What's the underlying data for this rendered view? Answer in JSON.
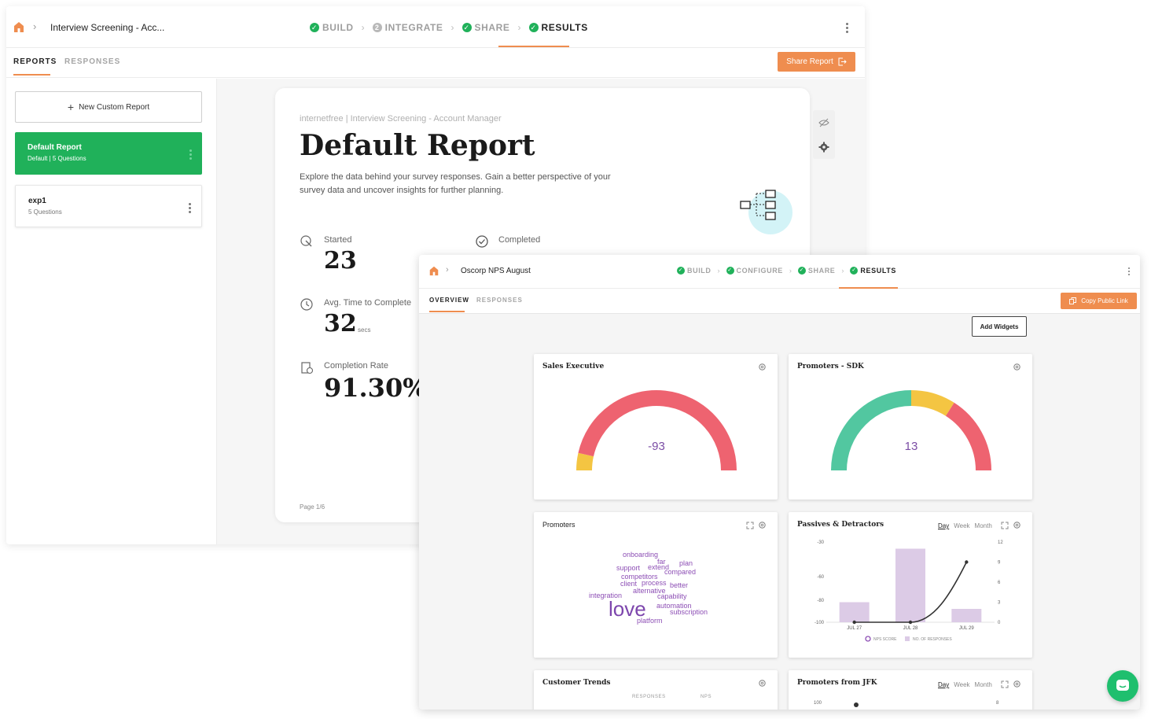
{
  "back_window": {
    "breadcrumb": {
      "title": "Interview Screening - Acc..."
    },
    "steps": [
      {
        "label": "BUILD",
        "done": true
      },
      {
        "label": "INTEGRATE",
        "done": false
      },
      {
        "label": "SHARE",
        "done": true
      },
      {
        "label": "RESULTS",
        "done": true,
        "active": true
      }
    ],
    "tabs": {
      "reports": "REPORTS",
      "responses": "RESPONSES"
    },
    "share_button": "Share Report",
    "sidebar": {
      "new_report": "New Custom Report",
      "reports": [
        {
          "title": "Default Report",
          "subtitle": "Default  |  5 Questions",
          "selected": true
        },
        {
          "title": "exp1",
          "subtitle": "5 Questions",
          "selected": false
        }
      ]
    },
    "report": {
      "crumb": "internetfree  |  Interview Screening - Account Manager",
      "title": "Default Report",
      "description": "Explore the data behind your survey responses. Gain a better perspective of your survey data and uncover insights for further planning.",
      "stats": {
        "started_label": "Started",
        "started_value": "23",
        "completed_label": "Completed",
        "avg_label": "Avg. Time to Complete",
        "avg_value": "32",
        "avg_unit": "secs",
        "rate_label": "Completion Rate",
        "rate_value": "91.30%"
      },
      "page": "Page 1/6"
    }
  },
  "front_window": {
    "breadcrumb": {
      "title": "Oscorp NPS August"
    },
    "steps": [
      {
        "label": "BUILD",
        "done": true
      },
      {
        "label": "CONFIGURE",
        "done": true
      },
      {
        "label": "SHARE",
        "done": true
      },
      {
        "label": "RESULTS",
        "done": true,
        "active": true
      }
    ],
    "tabs": {
      "overview": "OVERVIEW",
      "responses": "RESPONSES"
    },
    "copy_button": "Copy Public Link",
    "add_widgets": "Add Widgets",
    "widgets": {
      "sales_exec": {
        "title": "Sales Executive",
        "value": "-93"
      },
      "promoters_sdk": {
        "title": "Promoters - SDK",
        "value": "13"
      },
      "promoters": {
        "title": "Promoters"
      },
      "passives": {
        "title": "Passives & Detractors",
        "period": [
          "Day",
          "Week",
          "Month"
        ],
        "legend": [
          "NPS SCORE",
          "NO. OF RESPONSES"
        ]
      },
      "customer_trends": {
        "title": "Customer Trends",
        "cols": [
          "RESPONSES",
          "NPS"
        ]
      },
      "promoters_jfk": {
        "title": "Promoters from JFK",
        "period": [
          "Day",
          "Week",
          "Month"
        ],
        "left_tick": "100",
        "right_tick": "8"
      }
    },
    "word_cloud": [
      "onboarding",
      "far",
      "plan",
      "support",
      "extend",
      "compared",
      "competitors",
      "client",
      "process",
      "better",
      "alternative",
      "integration",
      "capability",
      "love",
      "automation",
      "subscription",
      "platform"
    ]
  },
  "chart_data": [
    {
      "type": "gauge",
      "title": "Sales Executive",
      "value": -93,
      "range": [
        -100,
        100
      ],
      "segments": [
        {
          "name": "yellow",
          "share": 0.07,
          "color": "#f4c542"
        },
        {
          "name": "red",
          "share": 0.93,
          "color": "#ee6370"
        }
      ]
    },
    {
      "type": "gauge",
      "title": "Promoters - SDK",
      "value": 13,
      "range": [
        -100,
        100
      ],
      "segments": [
        {
          "name": "green",
          "share": 0.5,
          "color": "#52c7a0"
        },
        {
          "name": "yellow",
          "share": 0.18,
          "color": "#f4c542"
        },
        {
          "name": "red",
          "share": 0.32,
          "color": "#ee6370"
        }
      ]
    },
    {
      "type": "bar+line",
      "title": "Passives & Detractors",
      "categories": [
        "JUL 27",
        "JUL 28",
        "JUL 29"
      ],
      "y_left_ticks": [
        "-30",
        "-60",
        "-80",
        "-100"
      ],
      "y_right_ticks": [
        "12",
        "9",
        "6",
        "3",
        "0"
      ],
      "y_right_range": [
        0,
        12
      ],
      "series": [
        {
          "name": "NO. OF RESPONSES",
          "type": "bar",
          "axis": "right",
          "values": [
            3,
            11,
            2
          ],
          "color": "#dccbe6"
        },
        {
          "name": "NPS SCORE",
          "type": "line",
          "axis": "right",
          "values": [
            0,
            0,
            9
          ],
          "color": "#333333"
        }
      ]
    }
  ]
}
